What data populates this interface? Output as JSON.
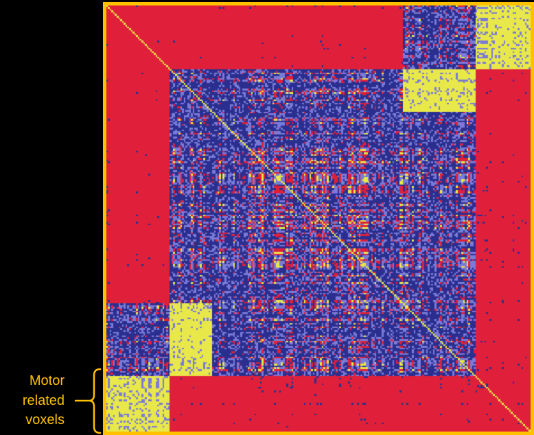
{
  "annotation": {
    "lines": [
      "Motor",
      "related",
      "voxels"
    ]
  },
  "colors": {
    "frame": "#ffc000",
    "annotation_text": "#ffc000",
    "background": "#000000",
    "high_correlation": "#e8e84a",
    "mid_correlation": "#7a7ad8",
    "low_correlation": "#2a2f8f",
    "negative_correlation": "#e0203a"
  },
  "chart_data": {
    "type": "heatmap",
    "title": "",
    "xlabel": "",
    "ylabel": "",
    "symmetric": true,
    "diagonal": "high",
    "blocks": [
      {
        "label": "Motor related voxels",
        "rows": [
          0.87,
          1.0
        ],
        "cols": [
          0.0,
          0.15
        ],
        "value": "high"
      },
      {
        "label": "Motor related voxels",
        "rows": [
          0.87,
          1.0
        ],
        "cols": [
          0.15,
          1.0
        ],
        "value": "negative"
      },
      {
        "rows": [
          0.0,
          0.7
        ],
        "cols": [
          0.0,
          0.15
        ],
        "value": "negative"
      },
      {
        "rows": [
          0.7,
          0.87
        ],
        "cols": [
          0.15,
          0.25
        ],
        "value": "high"
      }
    ]
  }
}
